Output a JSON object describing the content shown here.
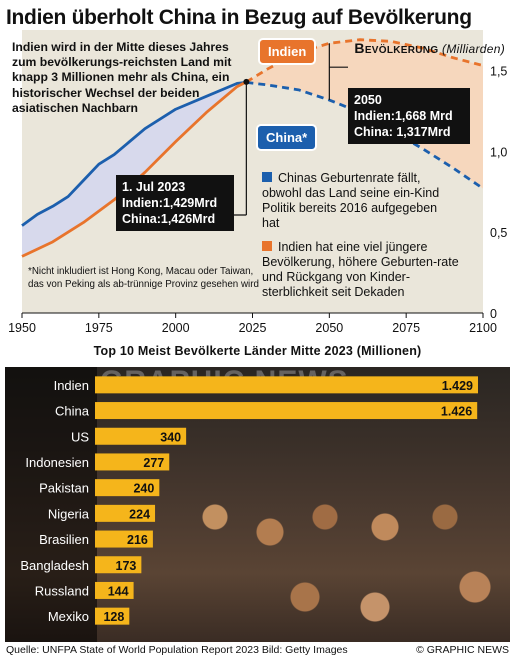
{
  "header": {
    "title": "Indien überholt China in Bezug auf Bevölkerung",
    "intro": "Indien wird in der Mitte dieses Jahres zum bevölkerungs-reichsten Land mit knapp 3 Millionen mehr als China, ein historischer Wechsel der beiden asiatischen Nachbarn",
    "pop_label_bold": "Bevölkerung",
    "pop_label_unit": "(Milliarden)"
  },
  "chart_data": [
    {
      "type": "line",
      "title": "Bevölkerung (Milliarden)",
      "x_ticks": [
        "1950",
        "1975",
        "2000",
        "2025",
        "2050",
        "2075",
        "2100"
      ],
      "y_ticks": [
        "0",
        "0,5",
        "1,0",
        "1,5"
      ],
      "xlim": [
        1950,
        2100
      ],
      "ylim": [
        0,
        1.75
      ],
      "grid": false,
      "projection_from": 2023,
      "series": [
        {
          "name": "Indien",
          "color": "#e8742c",
          "x": [
            1950,
            1960,
            1970,
            1980,
            1990,
            2000,
            2010,
            2020,
            2023,
            2030,
            2040,
            2050,
            2060,
            2070,
            2080,
            2090,
            2100
          ],
          "values": [
            0.35,
            0.44,
            0.56,
            0.7,
            0.87,
            1.06,
            1.24,
            1.4,
            1.429,
            1.51,
            1.61,
            1.668,
            1.69,
            1.68,
            1.64,
            1.58,
            1.53
          ]
        },
        {
          "name": "China",
          "color": "#1c5fad",
          "x": [
            1950,
            1955,
            1960,
            1965,
            1970,
            1975,
            1980,
            1990,
            2000,
            2010,
            2020,
            2023,
            2030,
            2040,
            2050,
            2060,
            2070,
            2080,
            2090,
            2100
          ],
          "values": [
            0.54,
            0.61,
            0.66,
            0.72,
            0.82,
            0.92,
            0.98,
            1.14,
            1.26,
            1.34,
            1.42,
            1.426,
            1.41,
            1.38,
            1.317,
            1.24,
            1.13,
            1.02,
            0.9,
            0.77
          ]
        }
      ],
      "annotations": {
        "now": {
          "line1": "1. Jul  2023",
          "line2": "Indien:1,429Mrd",
          "line3": "China:1,426Mrd"
        },
        "y2050": {
          "line1": "2050",
          "line2": "Indien:1,668 Mrd",
          "line3": "China: 1,317Mrd"
        },
        "tag_india": "Indien",
        "tag_china": "China*",
        "note_china": "Chinas Geburtenrate fällt, obwohl das Land seine ein-Kind Politik bereits 2016 aufgegeben hat",
        "note_india": "Indien hat eine viel jüngere Bevölkerung, höhere Geburten-rate und Rückgang von Kinder-sterblichkeit seit Dekaden",
        "footnote": "*Nicht inkludiert ist Hong Kong, Macau oder Taiwan, das von Peking als ab-trünnige Provinz gesehen wird"
      }
    },
    {
      "type": "bar",
      "title": "Top 10 Meist Bevölkerte Länder Mitte 2023 (Millionen)",
      "bar_color": "#f5b51b",
      "categories": [
        "Indien",
        "China",
        "US",
        "Indonesien",
        "Pakistan",
        "Nigeria",
        "Brasilien",
        "Bangladesh",
        "Russland",
        "Mexiko"
      ],
      "values": [
        1429,
        1426,
        340,
        277,
        240,
        224,
        216,
        173,
        144,
        128
      ],
      "labels": [
        "1.429",
        "1.426",
        "340",
        "277",
        "240",
        "224",
        "216",
        "173",
        "144",
        "128"
      ]
    }
  ],
  "watermark": "GRAPHIC NEWS",
  "footer": {
    "source": "Quelle: UNFPA State of World Population Report 2023   Bild: Getty Images",
    "credit": "© GRAPHIC NEWS"
  }
}
